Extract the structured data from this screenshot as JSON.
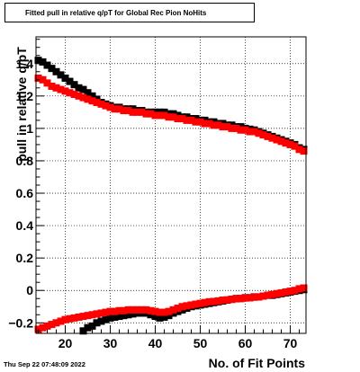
{
  "chart_data": {
    "type": "scatter",
    "title": "Fitted pull in relative q/pT for Global Rec Pion NoHits",
    "xlabel": "No. of Fit Points",
    "ylabel": "pull in relative q/pT",
    "xlim": [
      13.5,
      73.5
    ],
    "ylim": [
      -0.265,
      1.565
    ],
    "x_ticks": [
      20,
      30,
      40,
      50,
      60,
      70
    ],
    "y_ticks": [
      -0.2,
      0,
      0.2,
      0.4,
      0.6,
      0.8,
      1,
      1.2,
      1.4
    ],
    "y_tick_labels": [
      "−0.2",
      "0",
      "0.2",
      "0.4",
      "0.6",
      "0.8",
      "1",
      "1.2",
      "1.4"
    ],
    "grid": true,
    "series": [
      {
        "color": "#000000",
        "x": [
          14,
          15,
          16,
          17,
          18,
          19,
          20,
          21,
          22,
          23,
          24,
          25,
          26,
          27,
          28,
          29,
          30,
          31,
          32,
          33,
          34,
          35,
          36,
          37,
          38,
          39,
          40,
          41,
          42,
          43,
          44,
          45,
          46,
          47,
          48,
          49,
          50,
          51,
          52,
          53,
          54,
          55,
          56,
          57,
          58,
          59,
          60,
          61,
          62,
          63,
          64,
          65,
          66,
          67,
          68,
          69,
          70,
          71,
          72,
          73
        ],
        "y": [
          1.42,
          1.41,
          1.39,
          1.37,
          1.35,
          1.33,
          1.31,
          1.29,
          1.27,
          1.25,
          1.24,
          1.22,
          1.2,
          1.18,
          1.16,
          1.15,
          1.14,
          1.13,
          1.13,
          1.12,
          1.12,
          1.12,
          1.11,
          1.11,
          1.1,
          1.1,
          1.1,
          1.1,
          1.1,
          1.09,
          1.09,
          1.08,
          1.07,
          1.07,
          1.06,
          1.06,
          1.05,
          1.05,
          1.04,
          1.04,
          1.03,
          1.03,
          1.02,
          1.02,
          1.01,
          1.01,
          1.0,
          0.995,
          0.99,
          0.98,
          0.97,
          0.96,
          0.95,
          0.94,
          0.93,
          0.92,
          0.91,
          0.9,
          0.88,
          0.87
        ]
      },
      {
        "color": "#000000",
        "x": [
          24,
          25,
          26,
          27,
          28,
          29,
          30,
          31,
          32,
          33,
          34,
          35,
          36,
          37,
          38,
          39,
          40,
          41,
          42,
          43,
          44,
          45,
          46,
          47,
          48,
          49,
          50,
          51,
          52,
          53,
          54,
          55,
          56,
          57,
          58,
          59,
          60,
          61,
          62,
          63,
          64,
          65,
          66,
          67,
          68,
          69,
          70,
          71,
          72,
          73
        ],
        "y": [
          -0.25,
          -0.23,
          -0.22,
          -0.2,
          -0.19,
          -0.18,
          -0.17,
          -0.165,
          -0.16,
          -0.155,
          -0.15,
          -0.145,
          -0.14,
          -0.14,
          -0.14,
          -0.15,
          -0.16,
          -0.17,
          -0.165,
          -0.155,
          -0.14,
          -0.13,
          -0.12,
          -0.11,
          -0.1,
          -0.095,
          -0.09,
          -0.085,
          -0.08,
          -0.075,
          -0.07,
          -0.065,
          -0.06,
          -0.055,
          -0.05,
          -0.05,
          -0.045,
          -0.045,
          -0.04,
          -0.04,
          -0.035,
          -0.03,
          -0.03,
          -0.025,
          -0.02,
          -0.015,
          -0.01,
          -0.005,
          0.0,
          0.005
        ]
      },
      {
        "color": "#ff0000",
        "x": [
          14,
          15,
          16,
          17,
          18,
          19,
          20,
          21,
          22,
          23,
          24,
          25,
          26,
          27,
          28,
          29,
          30,
          31,
          32,
          33,
          34,
          35,
          36,
          37,
          38,
          39,
          40,
          41,
          42,
          43,
          44,
          45,
          46,
          47,
          48,
          49,
          50,
          51,
          52,
          53,
          54,
          55,
          56,
          57,
          58,
          59,
          60,
          61,
          62,
          63,
          64,
          65,
          66,
          67,
          68,
          69,
          70,
          71,
          72,
          73
        ],
        "y": [
          1.31,
          1.3,
          1.28,
          1.26,
          1.25,
          1.24,
          1.23,
          1.22,
          1.21,
          1.2,
          1.19,
          1.18,
          1.17,
          1.16,
          1.15,
          1.14,
          1.13,
          1.12,
          1.12,
          1.11,
          1.11,
          1.1,
          1.1,
          1.1,
          1.09,
          1.09,
          1.08,
          1.08,
          1.08,
          1.07,
          1.07,
          1.06,
          1.06,
          1.05,
          1.05,
          1.04,
          1.04,
          1.03,
          1.03,
          1.02,
          1.02,
          1.01,
          1.01,
          1.0,
          1.0,
          0.99,
          0.99,
          0.98,
          0.98,
          0.97,
          0.96,
          0.95,
          0.94,
          0.93,
          0.92,
          0.91,
          0.9,
          0.89,
          0.87,
          0.86
        ]
      },
      {
        "color": "#ff0000",
        "x": [
          14,
          15,
          16,
          17,
          18,
          19,
          20,
          21,
          22,
          23,
          24,
          25,
          26,
          27,
          28,
          29,
          30,
          31,
          32,
          33,
          34,
          35,
          36,
          37,
          38,
          39,
          40,
          41,
          42,
          43,
          44,
          45,
          46,
          47,
          48,
          49,
          50,
          51,
          52,
          53,
          54,
          55,
          56,
          57,
          58,
          59,
          60,
          61,
          62,
          63,
          64,
          65,
          66,
          67,
          68,
          69,
          70,
          71,
          72,
          73
        ],
        "y": [
          -0.24,
          -0.23,
          -0.22,
          -0.21,
          -0.2,
          -0.19,
          -0.18,
          -0.175,
          -0.17,
          -0.165,
          -0.16,
          -0.155,
          -0.15,
          -0.145,
          -0.14,
          -0.135,
          -0.13,
          -0.13,
          -0.125,
          -0.125,
          -0.12,
          -0.12,
          -0.12,
          -0.12,
          -0.12,
          -0.125,
          -0.13,
          -0.135,
          -0.135,
          -0.13,
          -0.12,
          -0.11,
          -0.1,
          -0.095,
          -0.09,
          -0.085,
          -0.08,
          -0.075,
          -0.07,
          -0.068,
          -0.065,
          -0.06,
          -0.058,
          -0.055,
          -0.052,
          -0.05,
          -0.047,
          -0.045,
          -0.042,
          -0.04,
          -0.035,
          -0.03,
          -0.025,
          -0.02,
          -0.015,
          -0.01,
          -0.005,
          0.0,
          0.01,
          0.015
        ]
      }
    ]
  },
  "footer": {
    "timestamp": "Thu Sep 22 07:48:09 2022"
  }
}
